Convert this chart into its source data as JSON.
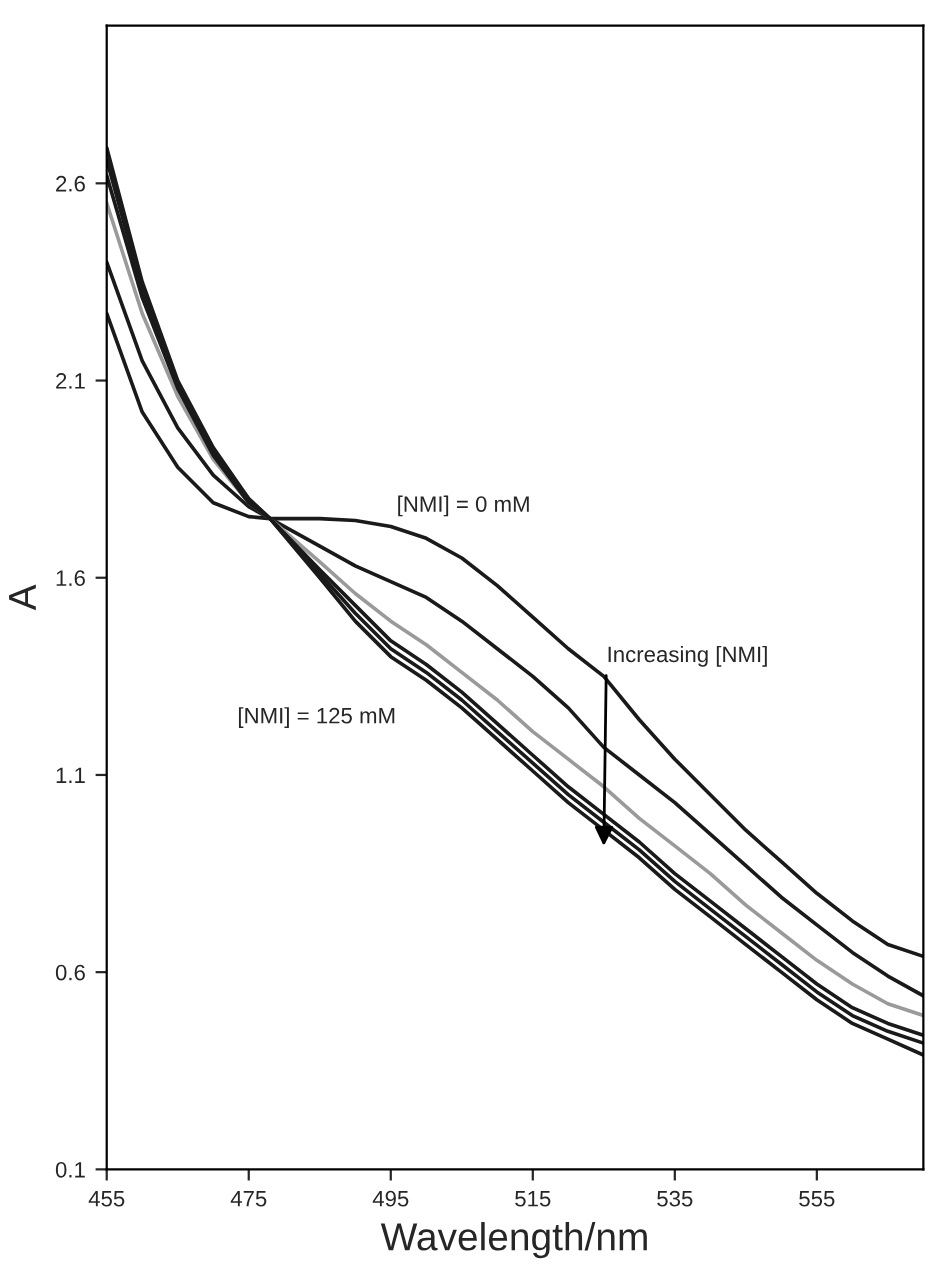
{
  "chart_data": {
    "type": "line",
    "xlabel": "Wavelength/nm",
    "ylabel": "A",
    "x": [
      455,
      460,
      465,
      470,
      475,
      478,
      485,
      490,
      495,
      500,
      505,
      510,
      515,
      520,
      525,
      530,
      535,
      540,
      545,
      550,
      555,
      560,
      565,
      570
    ],
    "series": [
      {
        "color": "#1a1a1a",
        "values": [
          2.27,
          2.02,
          1.88,
          1.79,
          1.755,
          1.75,
          1.75,
          1.745,
          1.73,
          1.7,
          1.65,
          1.58,
          1.5,
          1.42,
          1.35,
          1.24,
          1.14,
          1.05,
          0.96,
          0.88,
          0.8,
          0.73,
          0.67,
          0.64
        ]
      },
      {
        "color": "#1a1a1a",
        "values": [
          2.4,
          2.15,
          1.98,
          1.86,
          1.78,
          1.75,
          1.68,
          1.63,
          1.59,
          1.55,
          1.49,
          1.42,
          1.35,
          1.27,
          1.17,
          1.1,
          1.03,
          0.95,
          0.87,
          0.79,
          0.72,
          0.65,
          0.59,
          0.54
        ]
      },
      {
        "color": "#9a9a9a",
        "values": [
          2.55,
          2.27,
          2.06,
          1.9,
          1.79,
          1.75,
          1.64,
          1.56,
          1.49,
          1.43,
          1.36,
          1.29,
          1.21,
          1.14,
          1.07,
          0.99,
          0.92,
          0.85,
          0.77,
          0.7,
          0.63,
          0.57,
          0.52,
          0.49
        ]
      },
      {
        "color": "#1a1a1a",
        "values": [
          2.62,
          2.31,
          2.08,
          1.91,
          1.79,
          1.75,
          1.62,
          1.53,
          1.44,
          1.38,
          1.31,
          1.23,
          1.15,
          1.07,
          1.0,
          0.93,
          0.85,
          0.78,
          0.71,
          0.64,
          0.57,
          0.51,
          0.47,
          0.44
        ]
      },
      {
        "color": "#1a1a1a",
        "values": [
          2.66,
          2.33,
          2.09,
          1.92,
          1.8,
          1.75,
          1.61,
          1.51,
          1.42,
          1.36,
          1.29,
          1.21,
          1.13,
          1.05,
          0.98,
          0.91,
          0.83,
          0.76,
          0.69,
          0.62,
          0.55,
          0.49,
          0.45,
          0.42
        ]
      },
      {
        "color": "#1a1a1a",
        "values": [
          2.69,
          2.35,
          2.1,
          1.93,
          1.8,
          1.75,
          1.6,
          1.49,
          1.4,
          1.34,
          1.27,
          1.19,
          1.11,
          1.03,
          0.96,
          0.89,
          0.81,
          0.74,
          0.67,
          0.6,
          0.53,
          0.47,
          0.43,
          0.39
        ]
      }
    ],
    "annotations": [
      "[NMI] = 0 mM",
      "[NMI] = 125 mM",
      {
        "text": "Increasing [NMI]",
        "x": 525,
        "y": 0.92
      }
    ],
    "xlim": [
      455,
      570
    ],
    "ylim": [
      0.1,
      3.0
    ],
    "xticks": [
      455,
      475,
      495,
      515,
      535,
      555
    ],
    "yticks": [
      0.1,
      0.6,
      1.1,
      1.6,
      2.1,
      2.6
    ],
    "grid": false,
    "legend": false,
    "marker": "none",
    "line_style": "solid"
  }
}
